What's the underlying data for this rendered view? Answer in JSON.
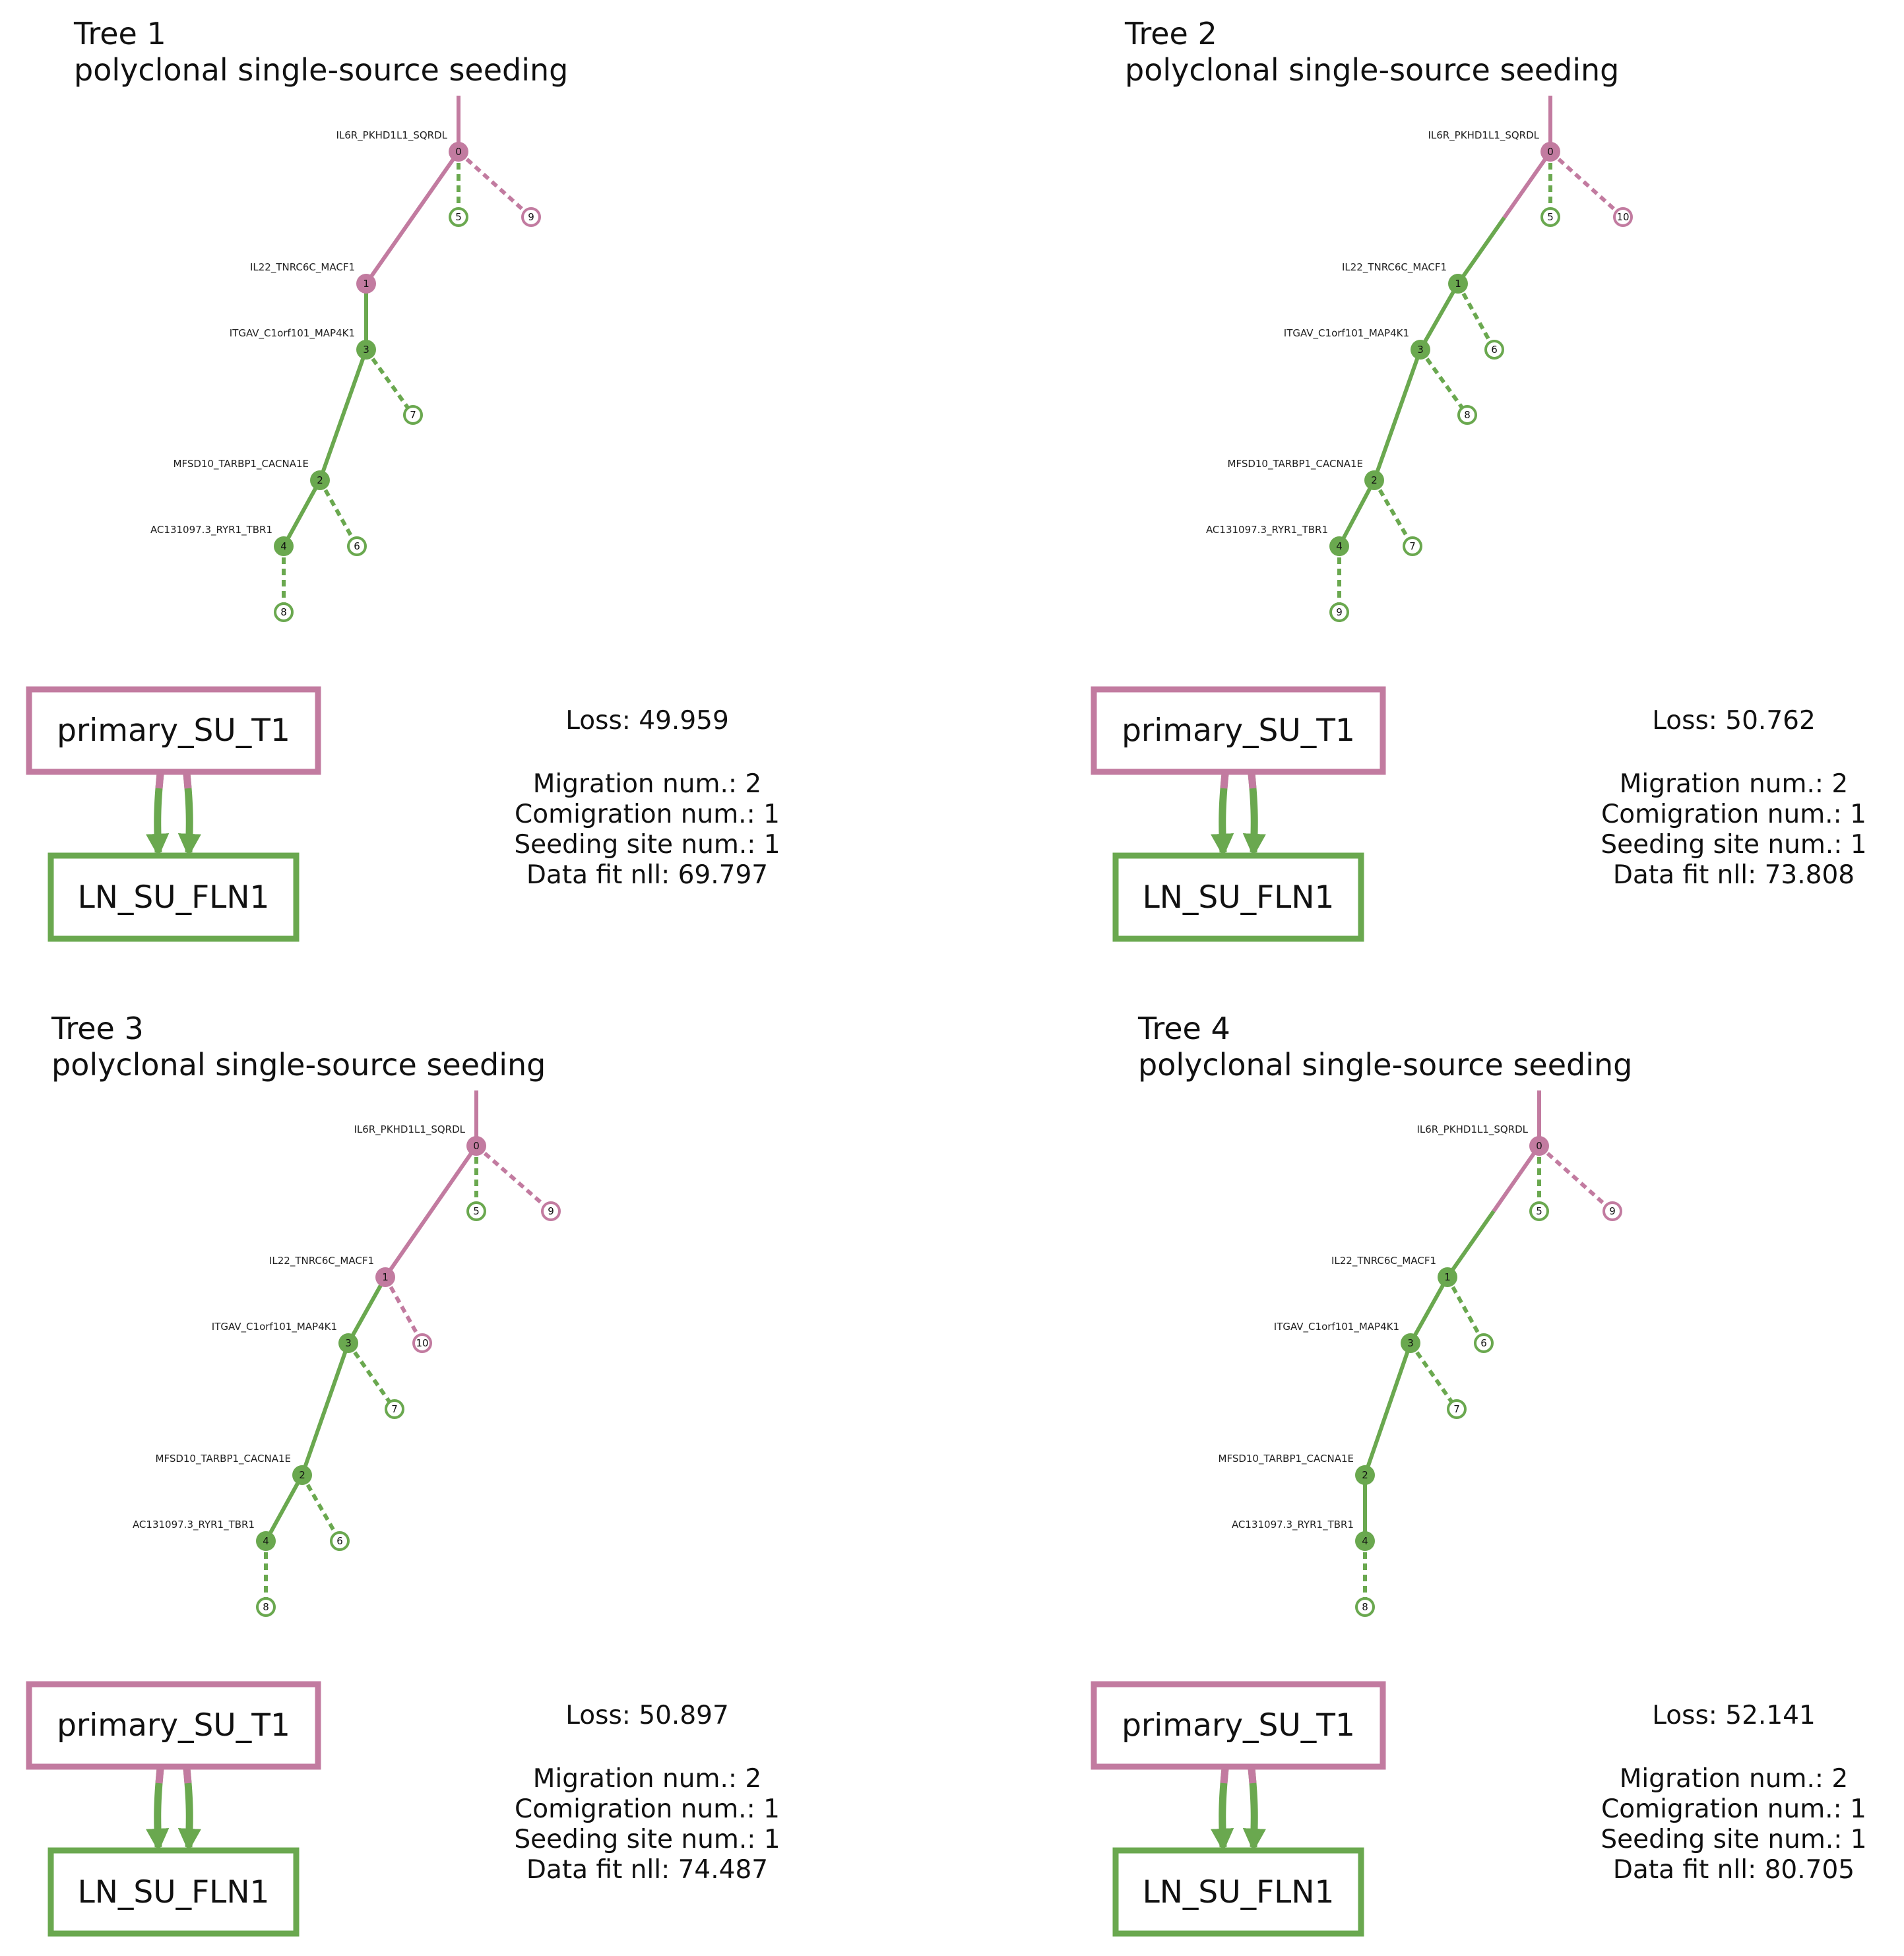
{
  "colors": {
    "primary": "#c27ba0",
    "lymph": "#6aa84f"
  },
  "sites": {
    "primary": "primary_SU_T1",
    "met": "LN_SU_FLN1"
  },
  "trees": [
    {
      "title": "Tree 1",
      "subtitle": "polyclonal single-source seeding",
      "labels": {
        "0": "IL6R_PKHD1L1_SQRDL",
        "1": "IL22_TNRC6C_MACF1",
        "3": "ITGAV_C1orf101_MAP4K1",
        "2": "MFSD10_TARBP1_CACNA1E",
        "4": "AC131097.3_RYR1_TBR1"
      },
      "stats": {
        "loss": "Loss: 49.959",
        "migration": "Migration num.: 2",
        "comigration": "Comigration num.: 1",
        "seeding": "Seeding site num.: 1",
        "nll": "Data fit nll: 69.797"
      }
    },
    {
      "title": "Tree 2",
      "subtitle": "polyclonal single-source seeding",
      "labels": {
        "0": "IL6R_PKHD1L1_SQRDL",
        "1": "IL22_TNRC6C_MACF1",
        "3": "ITGAV_C1orf101_MAP4K1",
        "2": "MFSD10_TARBP1_CACNA1E",
        "4": "AC131097.3_RYR1_TBR1"
      },
      "stats": {
        "loss": "Loss: 50.762",
        "migration": "Migration num.: 2",
        "comigration": "Comigration num.: 1",
        "seeding": "Seeding site num.: 1",
        "nll": "Data fit nll: 73.808"
      }
    },
    {
      "title": "Tree 3",
      "subtitle": "polyclonal single-source seeding",
      "labels": {
        "0": "IL6R_PKHD1L1_SQRDL",
        "1": "IL22_TNRC6C_MACF1",
        "3": "ITGAV_C1orf101_MAP4K1",
        "2": "MFSD10_TARBP1_CACNA1E",
        "4": "AC131097.3_RYR1_TBR1"
      },
      "stats": {
        "loss": "Loss: 50.897",
        "migration": "Migration num.: 2",
        "comigration": "Comigration num.: 1",
        "seeding": "Seeding site num.: 1",
        "nll": "Data fit nll: 74.487"
      }
    },
    {
      "title": "Tree 4",
      "subtitle": "polyclonal single-source seeding",
      "labels": {
        "0": "IL6R_PKHD1L1_SQRDL",
        "1": "IL22_TNRC6C_MACF1",
        "3": "ITGAV_C1orf101_MAP4K1",
        "2": "MFSD10_TARBP1_CACNA1E",
        "4": "AC131097.3_RYR1_TBR1"
      },
      "stats": {
        "loss": "Loss: 52.141",
        "migration": "Migration num.: 2",
        "comigration": "Comigration num.: 1",
        "seeding": "Seeding site num.: 1",
        "nll": "Data fit nll: 80.705"
      }
    }
  ]
}
